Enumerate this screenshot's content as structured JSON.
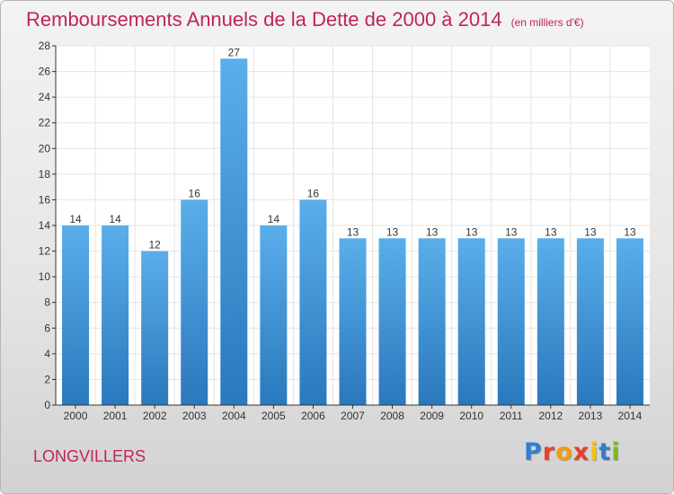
{
  "header": {
    "title": "Remboursements Annuels de la Dette de 2000 à 2014",
    "subtitle": "(en milliers d'€)"
  },
  "footer": {
    "commune": "LONGVILLERS",
    "logo_text": "Proxiti",
    "logo_colors": [
      "#2e7fd1",
      "#e7402a",
      "#f29b12",
      "#e7402a",
      "#f4c20d",
      "#2e7fd1",
      "#7ab828"
    ]
  },
  "colors": {
    "title": "#c0245a",
    "bar_light": "#5aaeea",
    "bar_dark": "#2a78bd",
    "grid": "#e4e4e4",
    "axis": "#333333"
  },
  "chart_data": {
    "type": "bar",
    "categories": [
      "2000",
      "2001",
      "2002",
      "2003",
      "2004",
      "2005",
      "2006",
      "2007",
      "2008",
      "2009",
      "2010",
      "2011",
      "2012",
      "2013",
      "2014"
    ],
    "values": [
      14,
      14,
      12,
      16,
      27,
      14,
      16,
      13,
      13,
      13,
      13,
      13,
      13,
      13,
      13
    ],
    "ylim": [
      0,
      28
    ],
    "yticks": [
      0,
      2,
      4,
      6,
      8,
      10,
      12,
      14,
      16,
      18,
      20,
      22,
      24,
      26,
      28
    ],
    "grid": true
  }
}
